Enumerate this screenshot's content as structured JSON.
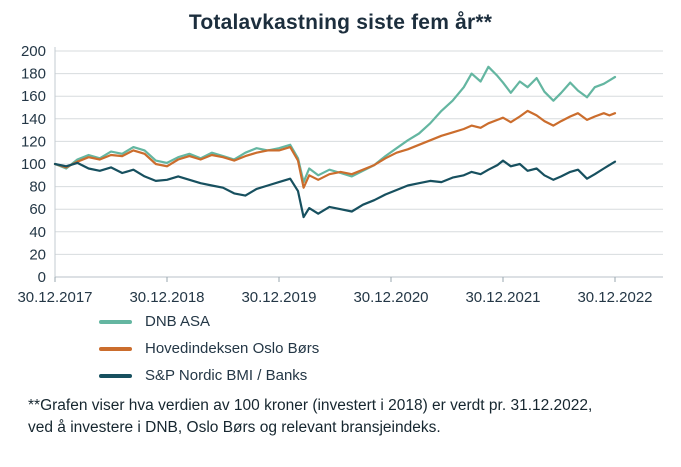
{
  "title": "Totalavkastning siste fem år**",
  "footnote": {
    "line1": "**Grafen viser hva verdien av 100 kroner (investert i 2018) er verdt pr. 31.12.2022,",
    "line2": "ved å investere i DNB, Oslo Børs og relevant bransjeindeks."
  },
  "chart_data": {
    "type": "line",
    "title": "Totalavkastning siste fem år**",
    "grid": "horizontal",
    "legend_position": "bottom-left",
    "ylim": [
      0,
      200
    ],
    "y_tick_step": 20,
    "x_range_years": [
      0,
      5
    ],
    "x_tick_labels": [
      "30.12.2017",
      "30.12.2018",
      "30.12.2019",
      "30.12.2020",
      "30.12.2021",
      "30.12.2022"
    ],
    "x_years": [
      0,
      0.1,
      0.2,
      0.3,
      0.4,
      0.5,
      0.6,
      0.7,
      0.8,
      0.9,
      1.0,
      1.1,
      1.2,
      1.3,
      1.4,
      1.5,
      1.6,
      1.7,
      1.8,
      1.9,
      2.0,
      2.1,
      2.17,
      2.22,
      2.27,
      2.35,
      2.45,
      2.55,
      2.65,
      2.75,
      2.85,
      2.95,
      3.05,
      3.15,
      3.25,
      3.35,
      3.45,
      3.55,
      3.65,
      3.72,
      3.8,
      3.87,
      3.95,
      4.0,
      4.07,
      4.15,
      4.22,
      4.3,
      4.37,
      4.45,
      4.52,
      4.6,
      4.67,
      4.75,
      4.82,
      4.9,
      4.95,
      5.0
    ],
    "series": [
      {
        "name": "DNB ASA",
        "color": "#64b6a1",
        "values": [
          100,
          96,
          104,
          108,
          105,
          111,
          109,
          115,
          112,
          103,
          101,
          106,
          109,
          105,
          110,
          107,
          104,
          110,
          114,
          112,
          114,
          117,
          105,
          84,
          96,
          90,
          95,
          92,
          89,
          94,
          99,
          107,
          114,
          121,
          127,
          136,
          147,
          156,
          168,
          180,
          173,
          186,
          178,
          172,
          163,
          173,
          168,
          176,
          164,
          156,
          163,
          172,
          165,
          159,
          168,
          171,
          174,
          177
        ]
      },
      {
        "name": "Hovedindeksen Oslo Børs",
        "color": "#cb6d2d",
        "values": [
          100,
          97,
          102,
          106,
          104,
          108,
          107,
          112,
          109,
          100,
          98,
          104,
          107,
          104,
          108,
          106,
          103,
          107,
          110,
          112,
          112,
          115,
          103,
          79,
          90,
          86,
          91,
          93,
          91,
          95,
          99,
          105,
          110,
          113,
          117,
          121,
          125,
          128,
          131,
          134,
          132,
          136,
          139,
          141,
          137,
          142,
          147,
          143,
          138,
          134,
          138,
          142,
          145,
          139,
          142,
          145,
          143,
          145
        ]
      },
      {
        "name": "S&P Nordic BMI / Banks",
        "color": "#17505f",
        "values": [
          100,
          98,
          101,
          96,
          94,
          97,
          92,
          95,
          89,
          85,
          86,
          89,
          86,
          83,
          81,
          79,
          74,
          72,
          78,
          81,
          84,
          87,
          76,
          53,
          61,
          56,
          62,
          60,
          58,
          64,
          68,
          73,
          77,
          81,
          83,
          85,
          84,
          88,
          90,
          93,
          91,
          95,
          99,
          103,
          98,
          100,
          94,
          96,
          90,
          86,
          89,
          93,
          95,
          87,
          91,
          96,
          99,
          102
        ]
      }
    ],
    "text_color": "#243746",
    "gridline_color": "#d7dbde"
  }
}
